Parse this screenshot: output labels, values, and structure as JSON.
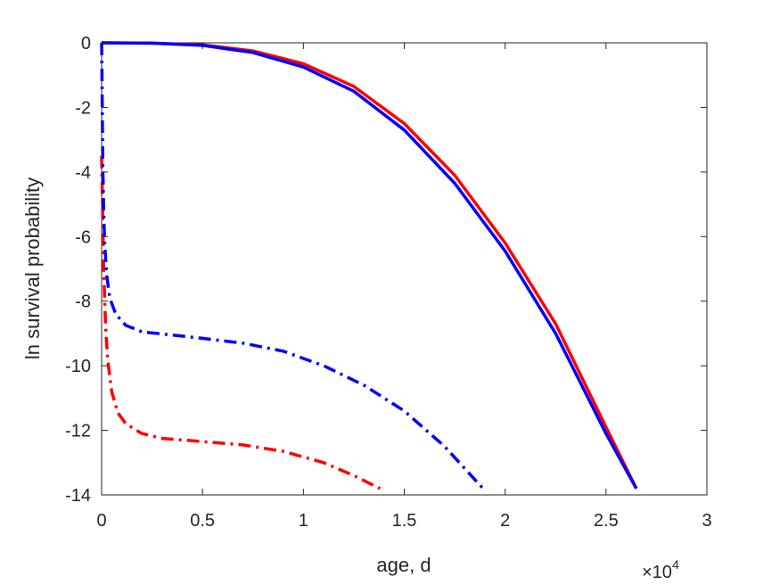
{
  "chart_data": {
    "type": "line",
    "title": "",
    "xlabel": "age, d",
    "ylabel": "ln survival probability",
    "x_multiplier_label": "×10",
    "x_multiplier_exponent": "4",
    "xlim": [
      0,
      30000
    ],
    "ylim": [
      -14,
      0
    ],
    "xticks": [
      0,
      5000,
      10000,
      15000,
      20000,
      25000,
      30000
    ],
    "xtick_labels": [
      "0",
      "0.5",
      "1",
      "1.5",
      "2",
      "2.5",
      "3"
    ],
    "yticks": [
      0,
      -2,
      -4,
      -6,
      -8,
      -10,
      -12,
      -14
    ],
    "ytick_labels": [
      "0",
      "-2",
      "-4",
      "-6",
      "-8",
      "-10",
      "-12",
      "-14"
    ],
    "grid": false,
    "legend": "none",
    "series": [
      {
        "color": "#ff0000",
        "style": "solid",
        "x": [
          0,
          2500,
          5000,
          7500,
          10000,
          12500,
          15000,
          17500,
          20000,
          22500,
          25000,
          26500
        ],
        "y": [
          0,
          -0.01,
          -0.06,
          -0.25,
          -0.65,
          -1.35,
          -2.5,
          -4.1,
          -6.2,
          -8.7,
          -11.9,
          -13.8
        ]
      },
      {
        "color": "#0000ff",
        "style": "solid",
        "x": [
          0,
          2500,
          5000,
          7500,
          10000,
          12500,
          15000,
          17500,
          20000,
          22500,
          25000,
          26500
        ],
        "y": [
          0,
          -0.01,
          -0.08,
          -0.3,
          -0.75,
          -1.5,
          -2.7,
          -4.35,
          -6.45,
          -9.0,
          -12.1,
          -13.8
        ]
      },
      {
        "color": "#ff0000",
        "style": "dashdot",
        "x": [
          0,
          100,
          200,
          300,
          500,
          800,
          1200,
          2000,
          3000,
          5000,
          7000,
          9000,
          11000,
          12500,
          13800
        ],
        "y": [
          -3.5,
          -7.0,
          -8.8,
          -9.8,
          -10.8,
          -11.45,
          -11.8,
          -12.1,
          -12.25,
          -12.35,
          -12.45,
          -12.65,
          -13.0,
          -13.4,
          -13.8
        ]
      },
      {
        "color": "#0000ff",
        "style": "dashdot",
        "x": [
          0,
          10,
          30,
          60,
          100,
          150,
          250,
          400,
          700,
          1200,
          2000,
          3500,
          5000,
          7000,
          9000,
          11000,
          13000,
          15000,
          17000,
          18900
        ],
        "y": [
          0,
          -0.3,
          -2.0,
          -3.9,
          -5.2,
          -6.2,
          -7.2,
          -7.9,
          -8.4,
          -8.75,
          -8.95,
          -9.05,
          -9.15,
          -9.3,
          -9.55,
          -10.0,
          -10.6,
          -11.4,
          -12.5,
          -13.8
        ]
      }
    ]
  }
}
